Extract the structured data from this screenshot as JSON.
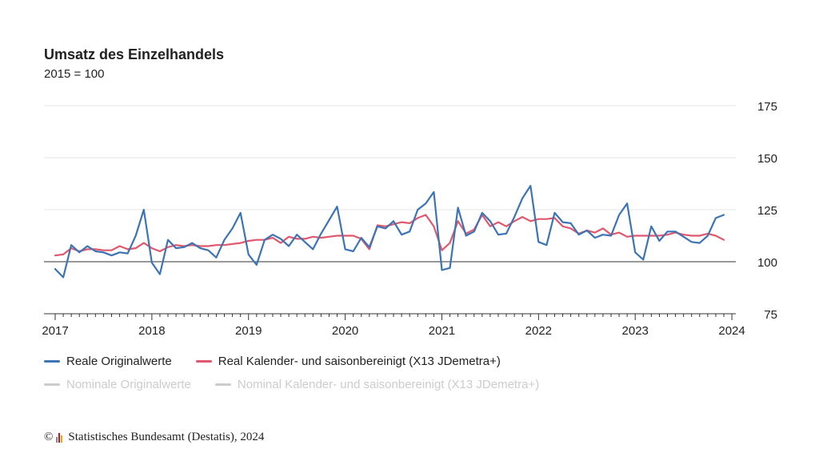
{
  "title": "Umsatz des Einzelhandels",
  "subtitle": "2015 = 100",
  "legend": {
    "items": [
      {
        "label": "Reale Originalwerte",
        "color": "#3d74b4",
        "active": true
      },
      {
        "label": "Real Kalender- und saisonbereinigt (X13 JDemetra+)",
        "color": "#e0586e",
        "active": true
      },
      {
        "label": "Nominale Originalwerte",
        "color": "#cccccc",
        "active": false
      },
      {
        "label": "Nominal Kalender- und saisonbereinigt (X13 JDemetra+)",
        "color": "#cccccc",
        "active": false
      }
    ]
  },
  "footer": {
    "copyright_symbol": "©",
    "text": "Statistisches Bundesamt (Destatis), 2024"
  },
  "chart_data": {
    "type": "line",
    "x_start": "2017-01",
    "x_frequency": "monthly",
    "x_ticks": [
      "2017",
      "2018",
      "2019",
      "2020",
      "2021",
      "2022",
      "2023",
      "2024"
    ],
    "y_ticks": [
      75,
      100,
      125,
      150,
      175
    ],
    "ylim": [
      75,
      175
    ],
    "baseline": 100,
    "grid": true,
    "y_axis_position": "right",
    "series": [
      {
        "name": "Reale Originalwerte",
        "color": "#3d74b4",
        "values": [
          96.5,
          92.5,
          108,
          104.5,
          107.5,
          105,
          104.5,
          103,
          104.5,
          104,
          112.5,
          125,
          99.5,
          94,
          110.5,
          106.5,
          107,
          109,
          106.5,
          105.5,
          102,
          110.5,
          116,
          123.5,
          103.5,
          98.5,
          110.5,
          113,
          111,
          107.5,
          113,
          109.5,
          106,
          113.5,
          120,
          126.5,
          106,
          105,
          111.5,
          107,
          117,
          116,
          119.5,
          113,
          114.5,
          125,
          128,
          133.5,
          96,
          97,
          126,
          112.5,
          114.5,
          123.5,
          119.5,
          113,
          113.5,
          121.5,
          130.5,
          136.5,
          109.5,
          108,
          123.5,
          119,
          118.5,
          113,
          115,
          111.5,
          113,
          112.5,
          122.5,
          128,
          104.5,
          101,
          117,
          110,
          114.5,
          114.5,
          112,
          109.5,
          109,
          112.5,
          121,
          122.5
        ]
      },
      {
        "name": "Real Kalender- und saisonbereinigt (X13 JDemetra+)",
        "color": "#e0586e",
        "values": [
          103,
          103.5,
          106.5,
          105,
          106,
          106,
          105.5,
          105.5,
          107.5,
          106,
          106.5,
          109,
          106.5,
          105,
          107,
          108,
          107.5,
          108,
          107.5,
          107.5,
          108,
          108,
          108.5,
          109,
          110,
          110.5,
          110.5,
          111.5,
          109,
          112,
          111,
          111,
          112,
          111.5,
          112,
          112.5,
          112.5,
          112.5,
          111,
          106,
          117.5,
          117,
          118,
          119,
          118.5,
          121,
          122.5,
          117,
          105.5,
          109,
          119.5,
          113.5,
          115.5,
          122.5,
          117,
          119,
          117,
          119.5,
          121.5,
          119.5,
          120.5,
          120.5,
          121,
          117,
          116,
          113.5,
          115,
          114,
          116,
          113,
          114,
          112,
          112.5,
          112.5,
          112.5,
          112.5,
          113,
          114,
          113,
          112.5,
          112.5,
          113.5,
          112.5,
          110.5
        ]
      }
    ]
  }
}
